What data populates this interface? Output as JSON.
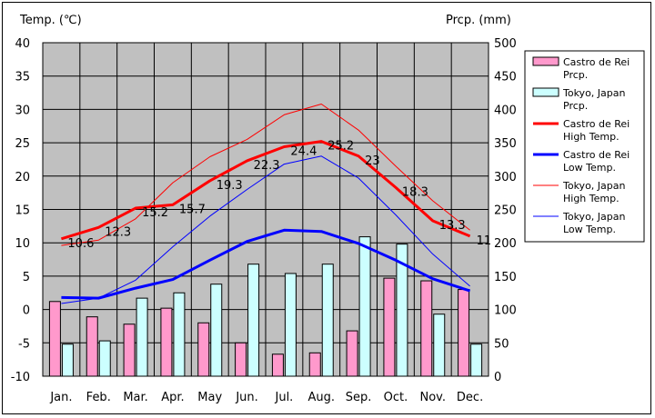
{
  "chart_data": {
    "type": "bar+line",
    "y_left_title": "Temp. (℃)",
    "y_right_title": "Prcp. (mm)",
    "y_left_range": [
      -10,
      40
    ],
    "y_left_ticks": [
      40,
      35,
      30,
      25,
      20,
      15,
      10,
      5,
      0,
      -5,
      -10
    ],
    "y_right_range": [
      0,
      500
    ],
    "y_right_ticks": [
      500,
      450,
      400,
      350,
      300,
      250,
      200,
      150,
      100,
      50,
      0
    ],
    "categories": [
      "Jan.",
      "Feb.",
      "Mar.",
      "Apr.",
      "May",
      "Jun.",
      "Jul.",
      "Aug.",
      "Sep.",
      "Oct.",
      "Nov.",
      "Dec."
    ],
    "grid": true,
    "legend_position": "right",
    "bar_series": [
      {
        "name_line1": "Castro de Rei",
        "name_line2": "Prcp.",
        "color": "#ff99cc",
        "values": [
          112,
          89,
          78,
          102,
          80,
          50,
          33,
          35,
          68,
          147,
          143,
          130
        ]
      },
      {
        "name_line1": "Tokyo, Japan",
        "name_line2": "Prcp.",
        "color": "#ccffff",
        "values": [
          48,
          53,
          117,
          125,
          138,
          168,
          154,
          168,
          209,
          198,
          93,
          48
        ]
      }
    ],
    "line_series": [
      {
        "name_line1": "Castro de Rei",
        "name_line2": "High Temp.",
        "color": "#ff0000",
        "width": 3,
        "values": [
          10.6,
          12.3,
          15.2,
          15.7,
          19.3,
          22.3,
          24.4,
          25.2,
          23,
          18.3,
          13.3,
          11
        ],
        "labels": [
          "10.6",
          "12.3",
          "15.2",
          "15.7",
          "19.3",
          "22.3",
          "24.4",
          "25.2",
          "23",
          "18.3",
          "13.3",
          "11"
        ]
      },
      {
        "name_line1": "Castro de Rei",
        "name_line2": "Low Temp.",
        "color": "#0000ff",
        "width": 3,
        "values": [
          1.8,
          1.7,
          3.2,
          4.5,
          7.4,
          10.2,
          11.9,
          11.7,
          9.9,
          7.4,
          4.6,
          2.8
        ]
      },
      {
        "name_line1": "Tokyo, Japan",
        "name_line2": "High Temp.",
        "color": "#ff0000",
        "width": 1,
        "values": [
          9.6,
          10.4,
          13.6,
          19.0,
          22.9,
          25.5,
          29.2,
          30.8,
          26.9,
          21.5,
          16.3,
          11.9
        ]
      },
      {
        "name_line1": "Tokyo, Japan",
        "name_line2": "Low Temp.",
        "color": "#0000ff",
        "width": 1,
        "values": [
          0.9,
          1.7,
          4.4,
          9.4,
          14.0,
          18.0,
          21.8,
          23.0,
          19.7,
          14.2,
          8.3,
          3.5
        ]
      }
    ]
  }
}
